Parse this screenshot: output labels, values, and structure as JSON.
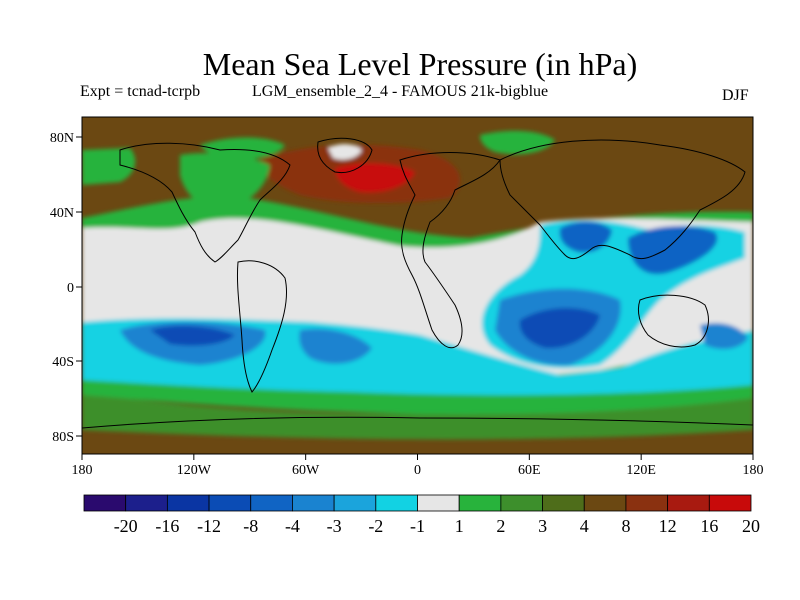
{
  "title": "Mean Sea Level Pressure (in hPa)",
  "subtitle_expt": "Expt = tcnad-tcrpb",
  "subtitle_ensemble": "LGM_ensemble_2_4 - FAMOUS 21k-bigblue",
  "season": "DJF",
  "lat_ticks": [
    "80N",
    "40N",
    "0",
    "40S",
    "80S"
  ],
  "lon_ticks": [
    "180",
    "120W",
    "60W",
    "0",
    "60E",
    "120E",
    "180"
  ],
  "colorbar": {
    "labels": [
      "-20",
      "-16",
      "-12",
      "-8",
      "-4",
      "-3",
      "-2",
      "-1",
      "1",
      "2",
      "3",
      "4",
      "8",
      "12",
      "16",
      "20"
    ],
    "colors": [
      "#2a0a6e",
      "#1c1f8c",
      "#0a35a3",
      "#0b4cb5",
      "#1064c4",
      "#1a83d0",
      "#1ba4dc",
      "#12d2e3",
      "#e6e6e6",
      "#28b33c",
      "#3d8f2c",
      "#4e6d1a",
      "#6b4812",
      "#8a3110",
      "#a81a10",
      "#c80a0a"
    ]
  },
  "map": {
    "background_color": "#6b4812",
    "regions": [
      {
        "name": "tropical-band-neutral",
        "class_index": 8
      },
      {
        "name": "southern-ocean-low",
        "class_index": 7
      },
      {
        "name": "south-pacific-low",
        "class_index": 5
      },
      {
        "name": "indian-ocean-low",
        "class_index": 5
      },
      {
        "name": "asia-pacific-low",
        "class_index": 4
      },
      {
        "name": "north-atlantic-high",
        "class_index": 15
      },
      {
        "name": "midlatitude-green-band",
        "class_index": 9
      }
    ]
  }
}
